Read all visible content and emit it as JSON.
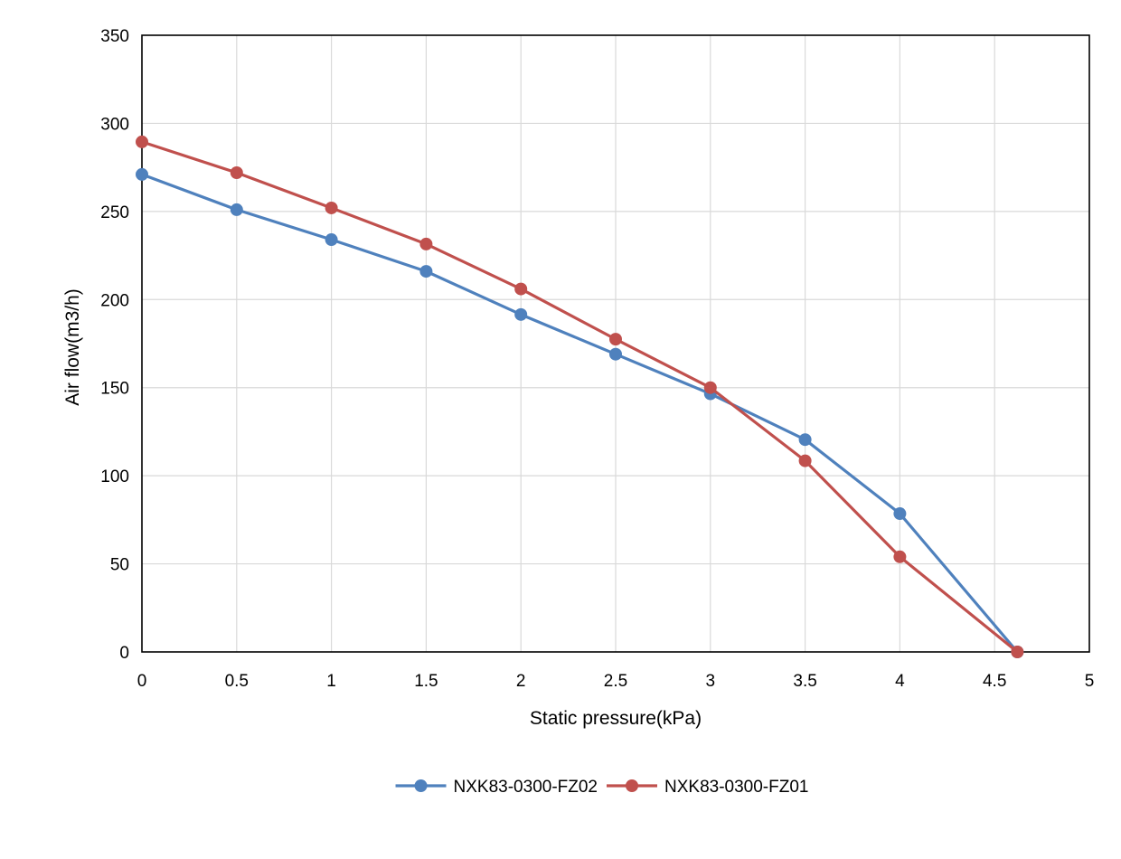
{
  "chart_data": {
    "type": "line",
    "title": "",
    "xlabel": "Static pressure(kPa)",
    "ylabel": "Air flow(m3/h)",
    "xlim": [
      0,
      5
    ],
    "ylim": [
      0,
      350
    ],
    "x_ticks": [
      "0",
      "0.5",
      "1",
      "1.5",
      "2",
      "2.5",
      "3",
      "3.5",
      "4",
      "4.5",
      "5"
    ],
    "x_tick_values": [
      0,
      0.5,
      1,
      1.5,
      2,
      2.5,
      3,
      3.5,
      4,
      4.5,
      5
    ],
    "y_ticks": [
      "0",
      "50",
      "100",
      "150",
      "200",
      "250",
      "300",
      "350"
    ],
    "y_tick_values": [
      0,
      50,
      100,
      150,
      200,
      250,
      300,
      350
    ],
    "grid": true,
    "legend_position": "bottom",
    "series": [
      {
        "name": "NXK83-0300-FZ02",
        "color": "#4f81bd",
        "x": [
          0,
          0.5,
          1,
          1.5,
          2,
          2.5,
          3,
          3.5,
          4,
          4.62
        ],
        "y": [
          271,
          251,
          234,
          216,
          191.5,
          169,
          146.5,
          120.5,
          78.5,
          0
        ]
      },
      {
        "name": "NXK83-0300-FZ01",
        "color": "#c0504d",
        "x": [
          0,
          0.5,
          1,
          1.5,
          2,
          2.5,
          3,
          3.5,
          4,
          4.62
        ],
        "y": [
          289.5,
          272,
          252,
          231.5,
          206,
          177.5,
          150,
          108.5,
          54,
          0
        ]
      }
    ]
  }
}
